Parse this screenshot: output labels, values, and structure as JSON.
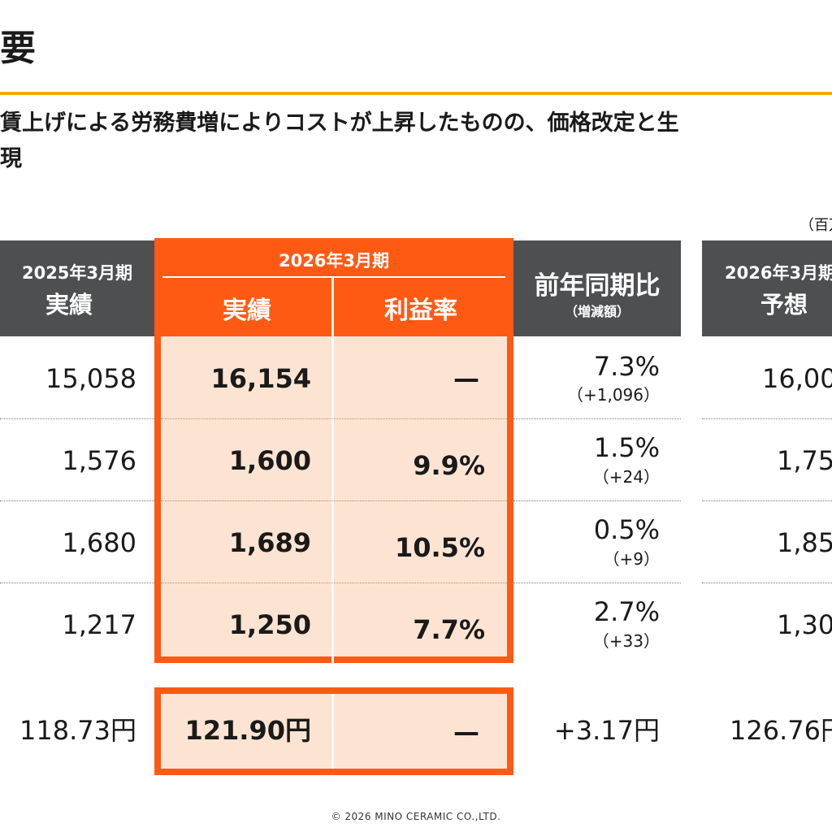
{
  "title": "要",
  "subtitle_line1": "賃上げによる労務費増によりコストが上昇したものの、価格改定と生",
  "subtitle_line2": "現",
  "unit_note": "（百万",
  "headers": {
    "prev": {
      "line1": "2025年3月期",
      "line2": "実績"
    },
    "current_group": "2026年3月期",
    "current_actual": "実績",
    "current_margin": "利益率",
    "yoy": {
      "line1": "前年同期比",
      "line2": "（増減額）"
    },
    "forecast": {
      "line1": "2026年3月期",
      "line2": "予想"
    }
  },
  "rows": [
    {
      "prev": "15,058",
      "actual": "16,154",
      "margin": "—",
      "yoy_pct": "7.3%",
      "yoy_diff": "（+1,096）",
      "forecast": "16,00"
    },
    {
      "prev": "1,576",
      "actual": "1,600",
      "margin": "9.9%",
      "yoy_pct": "1.5%",
      "yoy_diff": "（+24）",
      "forecast": "1,75"
    },
    {
      "prev": "1,680",
      "actual": "1,689",
      "margin": "10.5%",
      "yoy_pct": "0.5%",
      "yoy_diff": "（+9）",
      "forecast": "1,85"
    },
    {
      "prev": "1,217",
      "actual": "1,250",
      "margin": "7.7%",
      "yoy_pct": "2.7%",
      "yoy_diff": "（+33）",
      "forecast": "1,30"
    }
  ],
  "eps_row": {
    "prev": "118.73円",
    "actual": "121.90円",
    "margin": "—",
    "yoy": "+3.17円",
    "forecast": "126.76円"
  },
  "footer": "© 2026 MINO CERAMIC CO.,LTD.",
  "colors": {
    "accent_orange": "#ff5a14",
    "peach": "#fde4d2",
    "header_gray": "#4d4f51",
    "title_rule": "#f2a900"
  }
}
